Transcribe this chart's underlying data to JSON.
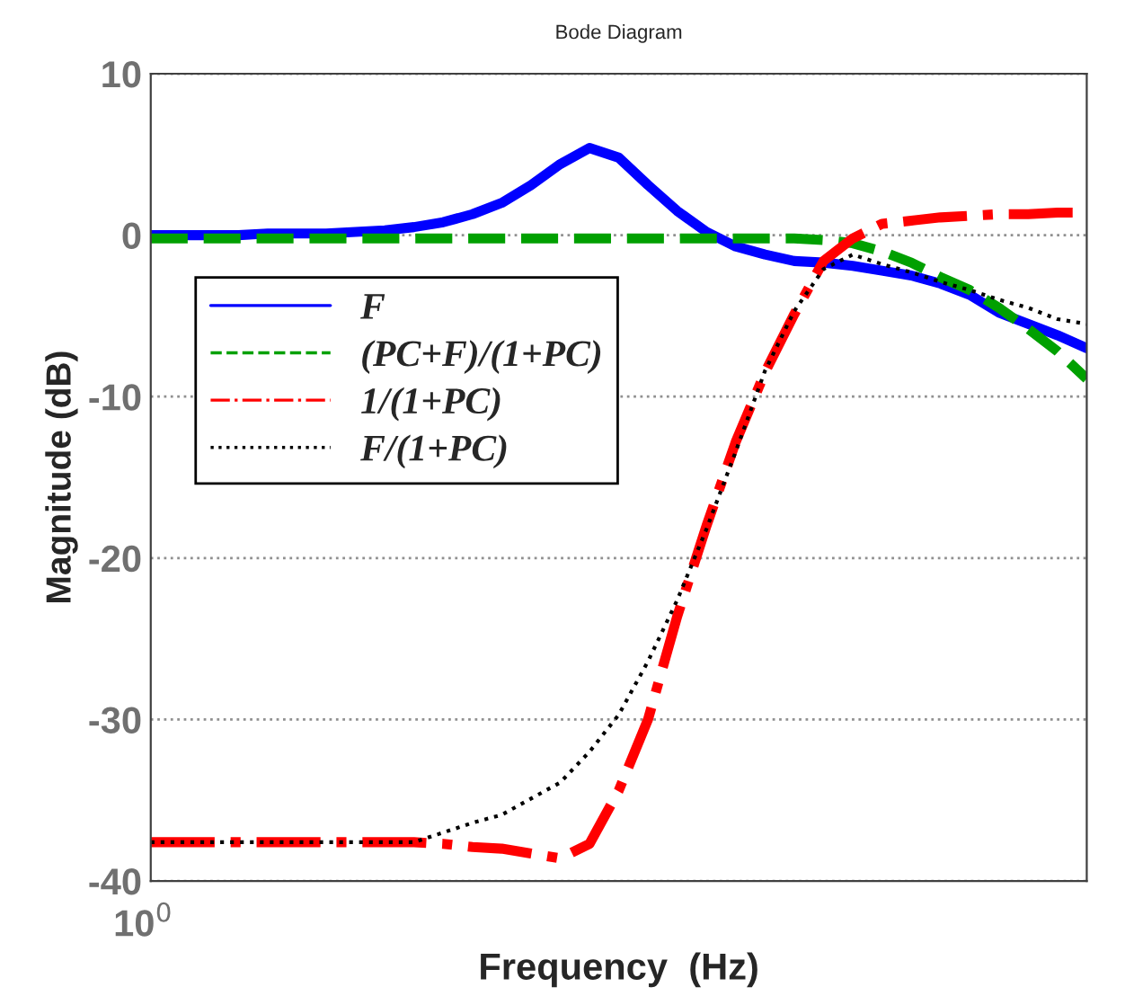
{
  "chart_data": {
    "type": "line",
    "title": "Bode Diagram",
    "xlabel": "Frequency  (Hz)",
    "ylabel": "Magnitude (dB)",
    "annotations": [
      "10$^{0}$"
    ],
    "categories": [
      null,
      null,
      null,
      null,
      null,
      null,
      null,
      null,
      null,
      null,
      null,
      null,
      null,
      null,
      null,
      null,
      null,
      null,
      null,
      null,
      null,
      null,
      null,
      null,
      null,
      null,
      null,
      null,
      null,
      null,
      null,
      null,
      null
    ],
    "ylim": [
      -40,
      10
    ],
    "yticks": [
      -40,
      -30,
      -20,
      -10,
      0,
      10
    ],
    "grid": "y",
    "legend": "left",
    "series": [
      {
        "name": "F",
        "color": "#0000ff",
        "line_style": "solid",
        "values": [
          0,
          0,
          0,
          0,
          0.1,
          0.1,
          0.1,
          0.2,
          0.3,
          0.5,
          0.8,
          1.3,
          2.0,
          3.1,
          4.4,
          5.4,
          4.8,
          3.1,
          1.5,
          0.2,
          -0.7,
          -1.2,
          -1.6,
          -1.7,
          -1.9,
          -2.2,
          -2.5,
          -3.0,
          -3.7,
          -4.8,
          -5.5,
          -6.2,
          -7.0
        ]
      },
      {
        "name": "(PC+F)/(1+PC)",
        "color": "#00a000",
        "line_style": "dashed",
        "values": [
          -0.2,
          -0.2,
          -0.2,
          -0.2,
          -0.2,
          -0.2,
          -0.2,
          -0.2,
          -0.2,
          -0.2,
          -0.2,
          -0.2,
          -0.2,
          -0.2,
          -0.2,
          -0.2,
          -0.2,
          -0.2,
          -0.2,
          -0.2,
          -0.2,
          -0.2,
          -0.2,
          -0.3,
          -0.5,
          -1.0,
          -1.7,
          -2.6,
          -3.4,
          -4.5,
          -5.8,
          -7.2,
          -8.9
        ]
      },
      {
        "name": "1/(1+PC)",
        "color": "#ff0000",
        "line_style": "dashdot",
        "values": [
          -37.6,
          -37.6,
          -37.6,
          -37.6,
          -37.6,
          -37.6,
          -37.6,
          -37.6,
          -37.6,
          -37.6,
          -37.7,
          -37.9,
          -38.0,
          -38.3,
          -38.6,
          -37.7,
          -34.4,
          -30.0,
          -23.6,
          -18.0,
          -12.8,
          -8.5,
          -4.9,
          -1.6,
          -0.2,
          0.7,
          0.9,
          1.1,
          1.2,
          1.3,
          1.3,
          1.4,
          1.4
        ]
      },
      {
        "name": "F/(1+PC)",
        "color": "#000000",
        "line_style": "dotted",
        "values": [
          -37.6,
          -37.6,
          -37.6,
          -37.6,
          -37.6,
          -37.6,
          -37.6,
          -37.6,
          -37.6,
          -37.6,
          -37.0,
          -36.4,
          -35.9,
          -34.9,
          -33.9,
          -32.0,
          -29.7,
          -26.4,
          -22.6,
          -18.2,
          -13.4,
          -8.4,
          -4.7,
          -2.1,
          -1.2,
          -1.8,
          -2.3,
          -2.9,
          -3.4,
          -4.0,
          -4.5,
          -5.2,
          -5.5
        ]
      }
    ]
  }
}
